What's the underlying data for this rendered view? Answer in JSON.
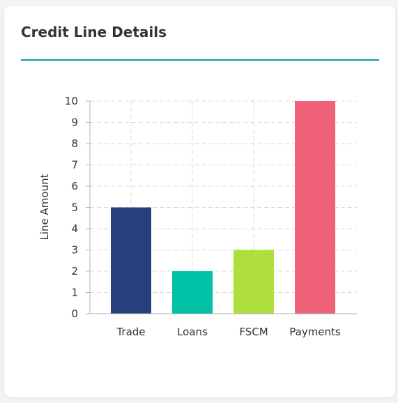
{
  "card": {
    "title": "Credit Line Details"
  },
  "colors": {
    "accent": "#0e9aa7",
    "grid": "#d9d9d9",
    "axis": "#b3b3b3"
  },
  "chart_data": {
    "type": "bar",
    "categories": [
      "Trade",
      "Loans",
      "FSCM",
      "Payments"
    ],
    "values": [
      5,
      2,
      3,
      10
    ],
    "colors": [
      "#263f7d",
      "#00c1a6",
      "#afdf3c",
      "#ef6279"
    ],
    "xlabel": "",
    "ylabel": "Line Amount",
    "ylim": [
      0,
      10
    ],
    "yticks": [
      0,
      1,
      2,
      3,
      4,
      5,
      6,
      7,
      8,
      9,
      10
    ],
    "grid": true,
    "legend": "none"
  }
}
